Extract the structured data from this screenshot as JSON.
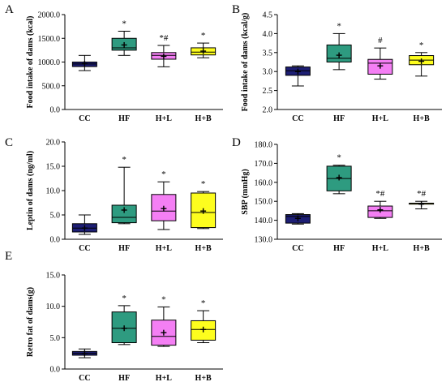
{
  "chart_data": [
    {
      "type": "box",
      "panel_label": "A",
      "ylabel": "Food intake of dams (kcal)",
      "ylim": [
        0,
        2000
      ],
      "yticks": [
        "0.0",
        "500.0",
        "1000.0",
        "1500.0",
        "2000.0"
      ],
      "categories": [
        "CC",
        "HF",
        "H+L",
        "H+B"
      ],
      "colors": [
        "#1d1e74",
        "#2e9b80",
        "#f47ff4",
        "#fdfd1e"
      ],
      "boxes": [
        {
          "min": 820,
          "q1": 905,
          "median": 960,
          "q3": 1000,
          "max": 1140,
          "mean": 965,
          "annotation": ""
        },
        {
          "min": 1140,
          "q1": 1250,
          "median": 1300,
          "q3": 1500,
          "max": 1650,
          "mean": 1360,
          "annotation": "*"
        },
        {
          "min": 900,
          "q1": 1060,
          "median": 1140,
          "q3": 1200,
          "max": 1350,
          "mean": 1120,
          "annotation": "*#"
        },
        {
          "min": 1090,
          "q1": 1150,
          "median": 1210,
          "q3": 1300,
          "max": 1400,
          "mean": 1230,
          "annotation": "*"
        }
      ]
    },
    {
      "type": "box",
      "panel_label": "B",
      "ylabel": "Food intake of dams (kcal/g)",
      "ylim": [
        2.0,
        4.5
      ],
      "yticks": [
        "2.0",
        "2.5",
        "3.0",
        "3.5",
        "4.0",
        "4.5"
      ],
      "categories": [
        "CC",
        "HF",
        "H+L",
        "H+B"
      ],
      "colors": [
        "#1d1e74",
        "#2e9b80",
        "#f47ff4",
        "#fdfd1e"
      ],
      "boxes": [
        {
          "min": 2.62,
          "q1": 2.9,
          "median": 3.02,
          "q3": 3.12,
          "max": 3.15,
          "mean": 3.0,
          "annotation": ""
        },
        {
          "min": 3.05,
          "q1": 3.25,
          "median": 3.35,
          "q3": 3.7,
          "max": 4.0,
          "mean": 3.43,
          "annotation": "*"
        },
        {
          "min": 2.8,
          "q1": 2.93,
          "median": 3.22,
          "q3": 3.32,
          "max": 3.62,
          "mean": 3.15,
          "annotation": "#"
        },
        {
          "min": 2.88,
          "q1": 3.18,
          "median": 3.3,
          "q3": 3.42,
          "max": 3.5,
          "mean": 3.27,
          "annotation": "*"
        }
      ]
    },
    {
      "type": "box",
      "panel_label": "C",
      "ylabel": "Leptin of dams (ng/ml)",
      "ylim": [
        0,
        20
      ],
      "yticks": [
        "0.0",
        "5.0",
        "10.0",
        "15.0",
        "20.0"
      ],
      "categories": [
        "CC",
        "HF",
        "H+L",
        "H+B"
      ],
      "colors": [
        "#1d1e74",
        "#2e9b80",
        "#f47ff4",
        "#fdfd1e"
      ],
      "boxes": [
        {
          "min": 1.0,
          "q1": 1.5,
          "median": 2.3,
          "q3": 3.2,
          "max": 5.0,
          "mean": 2.3,
          "annotation": ""
        },
        {
          "min": 3.2,
          "q1": 3.4,
          "median": 4.5,
          "q3": 7.0,
          "max": 14.8,
          "mean": 6.0,
          "annotation": "*"
        },
        {
          "min": 2.0,
          "q1": 3.8,
          "median": 5.8,
          "q3": 9.2,
          "max": 11.8,
          "mean": 6.3,
          "annotation": "*"
        },
        {
          "min": 2.2,
          "q1": 2.4,
          "median": 5.5,
          "q3": 9.5,
          "max": 9.8,
          "mean": 5.8,
          "annotation": "*"
        }
      ]
    },
    {
      "type": "box",
      "panel_label": "D",
      "ylabel": "SBP (mmHg)",
      "ylim": [
        130,
        180
      ],
      "yticks": [
        "130.0",
        "140.0",
        "150.0",
        "160.0",
        "170.0",
        "180.0"
      ],
      "categories": [
        "CC",
        "HF",
        "H+L",
        "H+B"
      ],
      "colors": [
        "#1d1e74",
        "#2e9b80",
        "#f47ff4",
        "#fdfd1e"
      ],
      "boxes": [
        {
          "min": 138,
          "q1": 138.5,
          "median": 142,
          "q3": 143,
          "max": 143.5,
          "mean": 141,
          "annotation": ""
        },
        {
          "min": 154,
          "q1": 155.5,
          "median": 162,
          "q3": 168.5,
          "max": 169,
          "mean": 162.5,
          "annotation": "*"
        },
        {
          "min": 141,
          "q1": 141.5,
          "median": 145,
          "q3": 147.5,
          "max": 150,
          "mean": 145.5,
          "annotation": "*#"
        },
        {
          "min": 146,
          "q1": 148.5,
          "median": 149,
          "q3": 149,
          "max": 150,
          "mean": 148.5,
          "annotation": "*#"
        }
      ]
    },
    {
      "type": "box",
      "panel_label": "E",
      "ylabel": "Retro fat of dams(g)",
      "ylim": [
        0,
        15
      ],
      "yticks": [
        "0.0",
        "5.0",
        "10.0",
        "15.0"
      ],
      "categories": [
        "CC",
        "HF",
        "H+L",
        "H+B"
      ],
      "colors": [
        "#1d1e74",
        "#2e9b80",
        "#f47ff4",
        "#fdfd1e"
      ],
      "boxes": [
        {
          "min": 1.8,
          "q1": 2.2,
          "median": 2.5,
          "q3": 2.8,
          "max": 3.2,
          "mean": 2.5,
          "annotation": ""
        },
        {
          "min": 3.9,
          "q1": 4.2,
          "median": 6.5,
          "q3": 9.1,
          "max": 10.1,
          "mean": 6.5,
          "annotation": "*"
        },
        {
          "min": 3.6,
          "q1": 3.8,
          "median": 5.2,
          "q3": 7.8,
          "max": 9.9,
          "mean": 5.8,
          "annotation": "*"
        },
        {
          "min": 4.2,
          "q1": 4.6,
          "median": 6.3,
          "q3": 7.7,
          "max": 9.3,
          "mean": 6.3,
          "annotation": "*"
        }
      ]
    }
  ]
}
